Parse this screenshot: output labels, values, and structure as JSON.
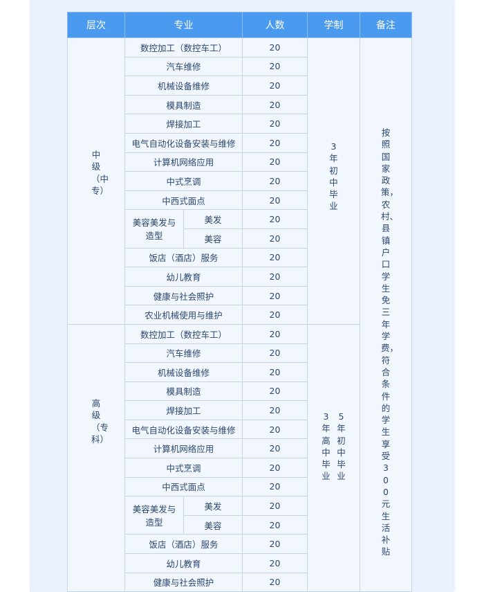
{
  "headers": [
    "层次",
    "专业",
    "人数",
    "学制",
    "备注"
  ],
  "mid": {
    "level": "中级（中专）",
    "duration": "3年初中毕业",
    "rows": [
      {
        "major": "数控加工（数控车工）",
        "count": "20"
      },
      {
        "major": "汽车维修",
        "count": "20"
      },
      {
        "major": "机械设备维修",
        "count": "20"
      },
      {
        "major": "模具制造",
        "count": "20"
      },
      {
        "major": "焊接加工",
        "count": "20"
      },
      {
        "major": "电气自动化设备安装与维修",
        "count": "20"
      },
      {
        "major": "计算机网络应用",
        "count": "20"
      },
      {
        "major": "中式烹调",
        "count": "20"
      },
      {
        "major": "中西式面点",
        "count": "20"
      },
      {
        "group": "美容美发与造型",
        "major": "美发",
        "count": "20"
      },
      {
        "group": "美容美发与造型",
        "major": "美容",
        "count": "20"
      },
      {
        "major": "饭店（酒店）服务",
        "count": "20"
      },
      {
        "major": "幼儿教育",
        "count": "20"
      },
      {
        "major": "健康与社会照护",
        "count": "20"
      },
      {
        "major": "农业机械使用与维护",
        "count": "20"
      }
    ]
  },
  "high": {
    "level": "高级（专科）",
    "duration_a": "3年高中毕业",
    "duration_b": "5年初中毕业",
    "rows": [
      {
        "major": "数控加工（数控车工）",
        "count": "20"
      },
      {
        "major": "汽车维修",
        "count": "20"
      },
      {
        "major": "机械设备维修",
        "count": "20"
      },
      {
        "major": "模具制造",
        "count": "20"
      },
      {
        "major": "焊接加工",
        "count": "20"
      },
      {
        "major": "电气自动化设备安装与维修",
        "count": "20"
      },
      {
        "major": "计算机网络应用",
        "count": "20"
      },
      {
        "major": "中式烹调",
        "count": "20"
      },
      {
        "major": "中西式面点",
        "count": "20"
      },
      {
        "group": "美容美发与造型",
        "major": "美发",
        "count": "20"
      },
      {
        "group": "美容美发与造型",
        "major": "美容",
        "count": "20"
      },
      {
        "major": "饭店（酒店）服务",
        "count": "20"
      },
      {
        "major": "幼儿教育",
        "count": "20"
      },
      {
        "major": "健康与社会照护",
        "count": "20"
      }
    ]
  },
  "note": "按照国家政策，农村、县镇户口学生免三年学费，符合条件的学生享受300元生活补贴"
}
